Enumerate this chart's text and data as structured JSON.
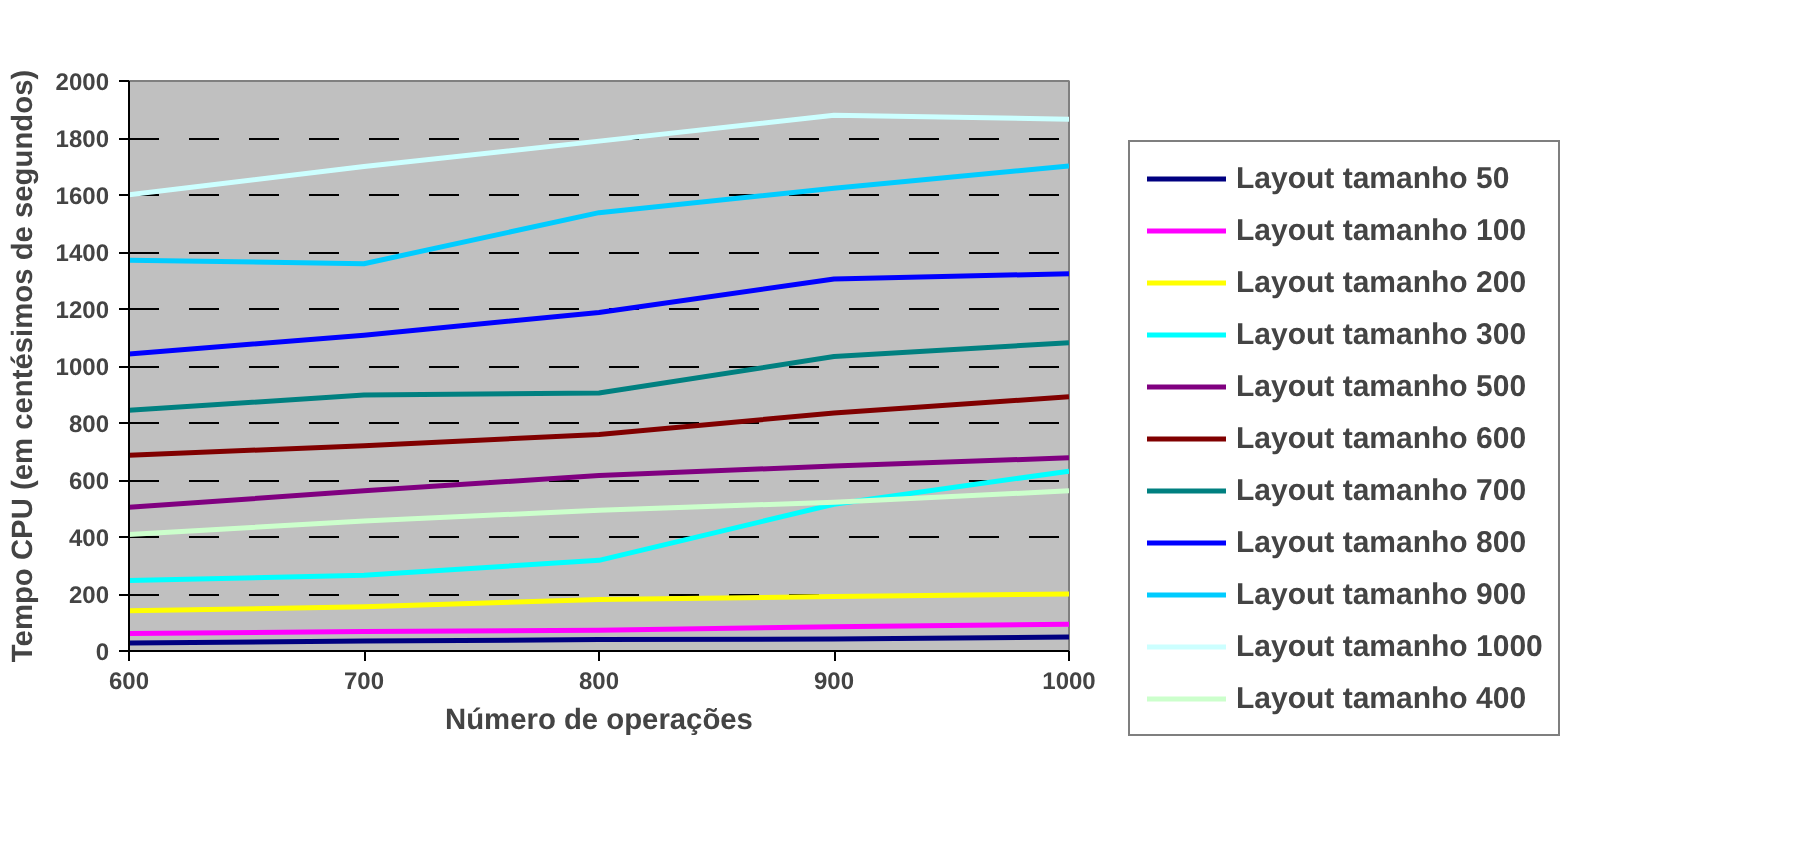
{
  "chart_data": {
    "type": "line",
    "xlabel": "Número de operações",
    "ylabel": "Tempo CPU (em centésimos de segundos)",
    "x": [
      600,
      700,
      800,
      900,
      1000
    ],
    "xlim": [
      600,
      1000
    ],
    "xticks": [
      600,
      700,
      800,
      900,
      1000
    ],
    "ylim": [
      0,
      2000
    ],
    "yticks": [
      0,
      200,
      400,
      600,
      800,
      1000,
      1200,
      1400,
      1600,
      1800,
      2000
    ],
    "grid": "y",
    "legend": "right",
    "marker": "none",
    "line_style": "solid",
    "series": [
      {
        "name": "Layout tamanho 50",
        "color": "#000080",
        "values": [
          28,
          35,
          40,
          42,
          49
        ]
      },
      {
        "name": "Layout tamanho 100",
        "color": "#ff00ff",
        "values": [
          61,
          68,
          73,
          85,
          94
        ]
      },
      {
        "name": "Layout tamanho 200",
        "color": "#ffff00",
        "values": [
          141,
          155,
          181,
          191,
          200
        ]
      },
      {
        "name": "Layout tamanho 300",
        "color": "#00ffff",
        "values": [
          247,
          266,
          318,
          515,
          631
        ]
      },
      {
        "name": "Layout tamanho 500",
        "color": "#800080",
        "values": [
          504,
          562,
          616,
          649,
          678
        ]
      },
      {
        "name": "Layout tamanho 600",
        "color": "#800000",
        "values": [
          687,
          720,
          760,
          835,
          892
        ]
      },
      {
        "name": "Layout tamanho 700",
        "color": "#008080",
        "values": [
          845,
          898,
          905,
          1033,
          1082
        ]
      },
      {
        "name": "Layout tamanho 800",
        "color": "#0000ff",
        "values": [
          1042,
          1108,
          1188,
          1305,
          1324
        ]
      },
      {
        "name": "Layout tamanho 900",
        "color": "#00ccff",
        "values": [
          1371,
          1359,
          1538,
          1624,
          1702
        ]
      },
      {
        "name": "Layout tamanho 1000",
        "color": "#ccffff",
        "values": [
          1601,
          1700,
          1789,
          1880,
          1866
        ]
      },
      {
        "name": "Layout tamanho 400",
        "color": "#ccffcc",
        "values": [
          409,
          456,
          494,
          522,
          562
        ]
      }
    ]
  }
}
